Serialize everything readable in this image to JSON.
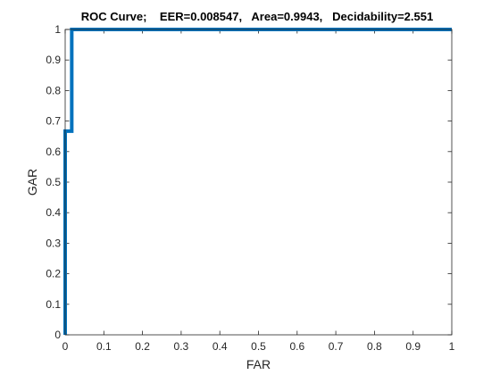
{
  "chart_data": {
    "type": "line",
    "title": "ROC Curve;    EER=0.008547,   Area=0.9943,   Decidability=2.551",
    "xlabel": "FAR",
    "ylabel": "GAR",
    "xlim": [
      0,
      1
    ],
    "ylim": [
      0,
      1
    ],
    "xticks": [
      "0",
      "0.1",
      "0.2",
      "0.3",
      "0.4",
      "0.5",
      "0.6",
      "0.7",
      "0.8",
      "0.9",
      "1"
    ],
    "yticks": [
      "0",
      "0.1",
      "0.2",
      "0.3",
      "0.4",
      "0.5",
      "0.6",
      "0.7",
      "0.8",
      "0.9",
      "1"
    ],
    "grid": false,
    "series": [
      {
        "color": "#0072BD",
        "points": [
          [
            0,
            0
          ],
          [
            0,
            0.667
          ],
          [
            0.017,
            0.667
          ],
          [
            0.017,
            1
          ],
          [
            1,
            1
          ]
        ]
      }
    ]
  }
}
